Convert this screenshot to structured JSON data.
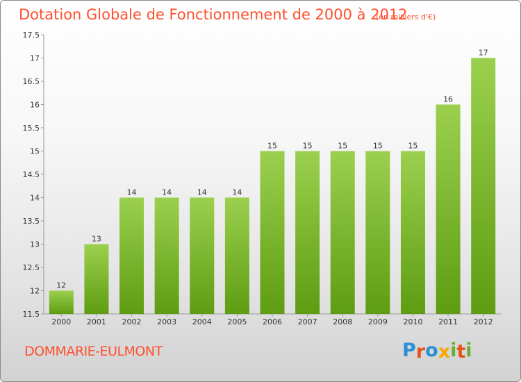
{
  "chart_data": {
    "type": "bar",
    "title": "Dotation Globale de Fonctionnement de 2000 à 2012",
    "unit_note": "(en milliers d'€)",
    "categories": [
      "2000",
      "2001",
      "2002",
      "2003",
      "2004",
      "2005",
      "2006",
      "2007",
      "2008",
      "2009",
      "2010",
      "2011",
      "2012"
    ],
    "values": [
      12,
      13,
      14,
      14,
      14,
      14,
      15,
      15,
      15,
      15,
      15,
      16,
      17
    ],
    "ylim": [
      11.5,
      17.5
    ],
    "yticks": [
      "11.5",
      "12",
      "12.5",
      "13",
      "13.5",
      "14",
      "14.5",
      "15",
      "15.5",
      "16",
      "16.5",
      "17",
      "17.5"
    ],
    "xlabel": "",
    "ylabel": "",
    "grid": false,
    "bar_color_top": "#9bd04e",
    "bar_color_bottom": "#5e9c12"
  },
  "footer": {
    "commune": "DOMMARIE-EULMONT",
    "logo_letters": [
      "P",
      "r",
      "o",
      "x",
      "i",
      "t",
      "i"
    ],
    "logo_colors": [
      "#2b8fd6",
      "#e8501c",
      "#2b8fd6",
      "#f5a800",
      "#62b12f",
      "#e8501c",
      "#62b12f"
    ]
  }
}
